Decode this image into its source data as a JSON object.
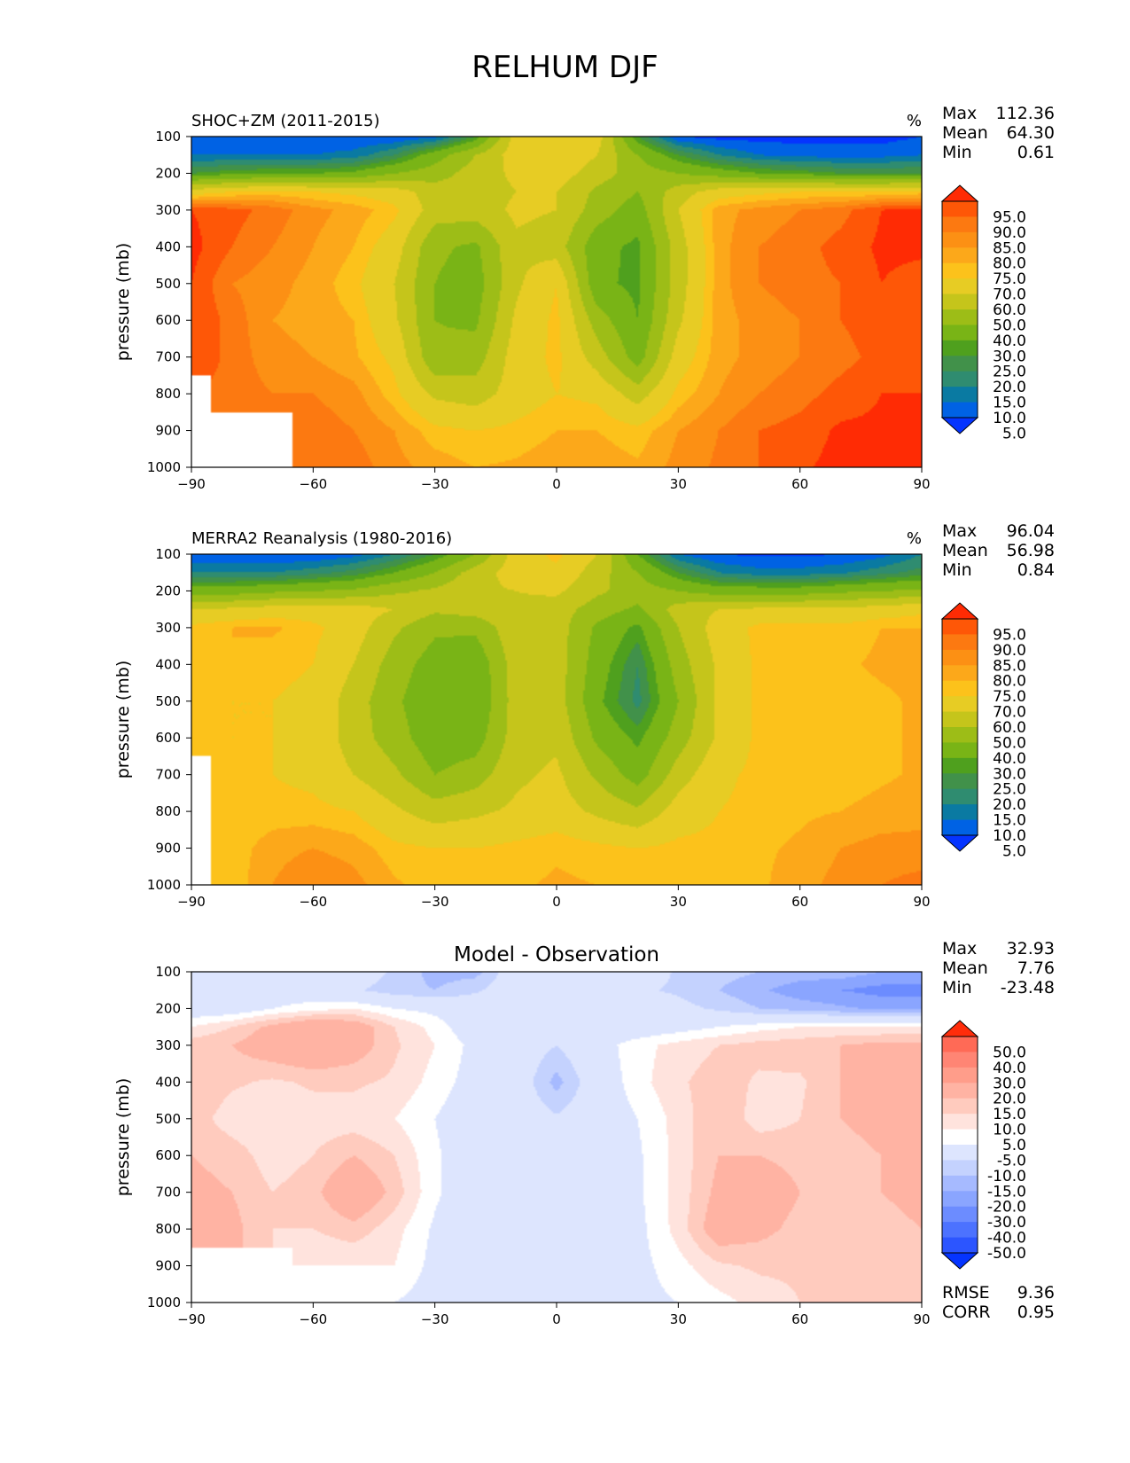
{
  "title": "RELHUM DJF",
  "colors": {
    "abs_levels": [
      "#0534ff",
      "#0062e4",
      "#0a7aa2",
      "#2f8c70",
      "#41914a",
      "#4fa01e",
      "#79b416",
      "#9dbd17",
      "#c5c51b",
      "#e7cc24",
      "#fcc21b",
      "#fca81a",
      "#fc9014",
      "#fc7911",
      "#fe5707",
      "#ff2b04"
    ],
    "diff_levels": [
      "#0534ff",
      "#2c55ff",
      "#4c72ff",
      "#6c8cff",
      "#8aa5ff",
      "#a6baff",
      "#c4d2fe",
      "#dde5fe",
      "#ffffff",
      "#ffe3dd",
      "#ffcbbe",
      "#ffb3a3",
      "#ff9d8a",
      "#ff8574",
      "#ff6a56",
      "#ff2d0b"
    ]
  },
  "chart_data": [
    {
      "type": "heatmap",
      "name": "model",
      "title": "SHOC+ZM (2011-2015)",
      "units": "%",
      "ylabel": "pressure (mb)",
      "xlabel": "",
      "x_ticks": [
        "−90",
        "−60",
        "−30",
        "0",
        "30",
        "60",
        "90"
      ],
      "y_ticks": [
        "100",
        "200",
        "300",
        "400",
        "500",
        "600",
        "700",
        "800",
        "900",
        "1000"
      ],
      "xlim": [
        -90,
        90
      ],
      "ylim": [
        1000,
        100
      ],
      "stats": {
        "max_label": "Max",
        "max": "112.36",
        "mean_label": "Mean",
        "mean": "64.30",
        "min_label": "Min",
        "min": "0.61"
      },
      "colorbar_labels": [
        "95.0",
        "90.0",
        "85.0",
        "80.0",
        "75.0",
        "70.0",
        "60.0",
        "50.0",
        "40.0",
        "30.0",
        "25.0",
        "20.0",
        "15.0",
        "10.0",
        "5.0"
      ],
      "lat": [
        -90,
        -80,
        -70,
        -60,
        -50,
        -40,
        -30,
        -20,
        -10,
        0,
        10,
        20,
        30,
        40,
        50,
        60,
        70,
        80,
        90
      ],
      "pressure": [
        100,
        150,
        200,
        250,
        300,
        400,
        500,
        600,
        700,
        800,
        900,
        1000
      ],
      "values": [
        [
          5,
          5,
          5,
          5,
          5,
          5,
          8,
          25,
          65,
          70,
          65,
          25,
          5,
          3,
          3,
          3,
          3,
          3,
          5
        ],
        [
          10,
          10,
          10,
          10,
          12,
          20,
          35,
          50,
          65,
          70,
          60,
          40,
          25,
          15,
          10,
          8,
          8,
          8,
          10
        ],
        [
          25,
          28,
          30,
          30,
          32,
          40,
          45,
          55,
          62,
          65,
          55,
          45,
          40,
          35,
          30,
          28,
          25,
          25,
          25
        ],
        [
          65,
          70,
          72,
          70,
          68,
          65,
          55,
          55,
          60,
          60,
          48,
          40,
          55,
          65,
          68,
          70,
          70,
          70,
          72
        ],
        [
          95,
          92,
          88,
          82,
          78,
          72,
          55,
          55,
          62,
          60,
          45,
          35,
          60,
          78,
          82,
          85,
          88,
          95,
          97
        ],
        [
          97,
          90,
          85,
          80,
          75,
          65,
          42,
          38,
          58,
          55,
          33,
          28,
          55,
          78,
          85,
          88,
          92,
          96,
          96
        ],
        [
          95,
          85,
          82,
          78,
          72,
          60,
          40,
          35,
          58,
          70,
          32,
          28,
          55,
          78,
          85,
          88,
          90,
          95,
          93
        ],
        [
          95,
          88,
          80,
          78,
          75,
          62,
          40,
          38,
          62,
          72,
          45,
          30,
          58,
          78,
          82,
          85,
          90,
          93,
          92
        ],
        [
          95,
          88,
          82,
          80,
          76,
          68,
          42,
          45,
          65,
          72,
          55,
          35,
          65,
          78,
          82,
          85,
          88,
          92,
          92
        ],
        [
          null,
          88,
          85,
          85,
          82,
          72,
          58,
          55,
          65,
          70,
          68,
          55,
          72,
          80,
          85,
          88,
          92,
          95,
          95
        ],
        [
          null,
          null,
          null,
          88,
          85,
          80,
          72,
          70,
          72,
          75,
          75,
          72,
          80,
          85,
          90,
          92,
          96,
          96,
          97
        ],
        [
          null,
          null,
          null,
          88,
          88,
          82,
          78,
          75,
          76,
          78,
          78,
          76,
          82,
          86,
          90,
          94,
          97,
          97,
          98
        ]
      ]
    },
    {
      "type": "heatmap",
      "name": "obs",
      "title": "MERRA2 Reanalysis (1980-2016)",
      "units": "%",
      "ylabel": "pressure (mb)",
      "xlabel": "",
      "x_ticks": [
        "−90",
        "−60",
        "−30",
        "0",
        "30",
        "60",
        "90"
      ],
      "y_ticks": [
        "100",
        "200",
        "300",
        "400",
        "500",
        "600",
        "700",
        "800",
        "900",
        "1000"
      ],
      "xlim": [
        -90,
        90
      ],
      "ylim": [
        1000,
        100
      ],
      "stats": {
        "max_label": "Max",
        "max": "96.04",
        "mean_label": "Mean",
        "mean": "56.98",
        "min_label": "Min",
        "min": "0.84"
      },
      "colorbar_labels": [
        "95.0",
        "90.0",
        "85.0",
        "80.0",
        "75.0",
        "70.0",
        "60.0",
        "50.0",
        "40.0",
        "30.0",
        "25.0",
        "20.0",
        "15.0",
        "10.0",
        "5.0"
      ],
      "lat": [
        -90,
        -80,
        -70,
        -60,
        -50,
        -40,
        -30,
        -20,
        -10,
        0,
        10,
        20,
        30,
        40,
        50,
        60,
        70,
        80,
        90
      ],
      "pressure": [
        100,
        150,
        200,
        250,
        300,
        400,
        500,
        600,
        700,
        800,
        900,
        1000
      ],
      "values": [
        [
          5,
          5,
          5,
          5,
          8,
          15,
          25,
          40,
          65,
          72,
          60,
          30,
          10,
          5,
          4,
          4,
          5,
          8,
          15
        ],
        [
          15,
          15,
          15,
          18,
          22,
          30,
          40,
          55,
          65,
          68,
          55,
          40,
          25,
          15,
          12,
          12,
          14,
          18,
          22
        ],
        [
          35,
          35,
          38,
          40,
          42,
          48,
          52,
          58,
          60,
          62,
          52,
          45,
          40,
          35,
          35,
          35,
          38,
          40,
          42
        ],
        [
          60,
          62,
          65,
          65,
          65,
          60,
          52,
          55,
          58,
          55,
          45,
          38,
          55,
          60,
          62,
          62,
          62,
          65,
          68
        ],
        [
          72,
          75,
          76,
          72,
          65,
          52,
          42,
          42,
          58,
          55,
          38,
          28,
          50,
          65,
          72,
          72,
          72,
          75,
          75
        ],
        [
          74,
          75,
          72,
          70,
          60,
          45,
          35,
          32,
          55,
          55,
          35,
          20,
          45,
          62,
          72,
          74,
          74,
          76,
          76
        ],
        [
          72,
          70,
          70,
          68,
          55,
          42,
          32,
          30,
          55,
          55,
          32,
          18,
          40,
          62,
          72,
          72,
          72,
          74,
          76
        ],
        [
          72,
          70,
          70,
          68,
          55,
          45,
          33,
          35,
          55,
          58,
          38,
          28,
          45,
          62,
          72,
          72,
          72,
          74,
          76
        ],
        [
          null,
          72,
          70,
          68,
          60,
          52,
          40,
          45,
          58,
          62,
          48,
          35,
          55,
          68,
          72,
          72,
          72,
          74,
          76
        ],
        [
          null,
          70,
          72,
          72,
          70,
          62,
          55,
          58,
          62,
          65,
          58,
          52,
          65,
          70,
          72,
          74,
          75,
          77,
          78
        ],
        [
          null,
          72,
          78,
          80,
          78,
          72,
          70,
          70,
          72,
          74,
          72,
          70,
          72,
          72,
          74,
          76,
          80,
          82,
          82
        ],
        [
          null,
          72,
          80,
          85,
          82,
          76,
          72,
          72,
          74,
          76,
          75,
          72,
          72,
          72,
          74,
          78,
          82,
          85,
          87
        ]
      ]
    },
    {
      "type": "heatmap",
      "name": "diff",
      "title": "Model - Observation",
      "units": "",
      "ylabel": "pressure (mb)",
      "xlabel": "",
      "x_ticks": [
        "−90",
        "−60",
        "−30",
        "0",
        "30",
        "60",
        "90"
      ],
      "y_ticks": [
        "100",
        "200",
        "300",
        "400",
        "500",
        "600",
        "700",
        "800",
        "900",
        "1000"
      ],
      "xlim": [
        -90,
        90
      ],
      "ylim": [
        1000,
        100
      ],
      "stats": {
        "max_label": "Max",
        "max": "32.93",
        "mean_label": "Mean",
        "mean": "7.76",
        "min_label": "Min",
        "min": "-23.48"
      },
      "colorbar_labels": [
        "50.0",
        "40.0",
        "30.0",
        "20.0",
        "15.0",
        "10.0",
        "5.0",
        "-5.0",
        "-10.0",
        "-15.0",
        "-20.0",
        "-30.0",
        "-40.0",
        "-50.0"
      ],
      "metrics": {
        "rmse_label": "RMSE",
        "rmse": "9.36",
        "corr_label": "CORR",
        "corr": "0.95"
      },
      "lat": [
        -90,
        -80,
        -70,
        -60,
        -50,
        -40,
        -30,
        -20,
        -10,
        0,
        10,
        20,
        30,
        40,
        50,
        60,
        70,
        80,
        90
      ],
      "pressure": [
        100,
        150,
        200,
        250,
        300,
        400,
        500,
        600,
        700,
        800,
        900,
        1000
      ],
      "values": [
        [
          0,
          0,
          0,
          0,
          0,
          -6,
          -12,
          -12,
          0,
          3,
          3,
          0,
          -6,
          -8,
          -10,
          -12,
          -12,
          -15,
          -15
        ],
        [
          0,
          0,
          0,
          0,
          -4,
          -8,
          -10,
          -6,
          0,
          2,
          0,
          -4,
          -6,
          -10,
          -14,
          -18,
          -20,
          -22,
          -22
        ],
        [
          0,
          0,
          5,
          8,
          10,
          5,
          3,
          0,
          0,
          0,
          0,
          0,
          -3,
          -6,
          -10,
          -12,
          -14,
          -16,
          -16
        ],
        [
          10,
          15,
          22,
          28,
          25,
          15,
          8,
          0,
          0,
          2,
          0,
          0,
          2,
          5,
          8,
          10,
          10,
          10,
          10
        ],
        [
          18,
          20,
          25,
          28,
          24,
          16,
          10,
          3,
          0,
          -5,
          2,
          8,
          12,
          15,
          17,
          18,
          20,
          22,
          22
        ],
        [
          20,
          16,
          14,
          16,
          16,
          14,
          8,
          2,
          0,
          -12,
          0,
          8,
          14,
          18,
          14,
          14,
          20,
          22,
          20
        ],
        [
          18,
          12,
          10,
          12,
          12,
          10,
          5,
          0,
          0,
          -4,
          0,
          5,
          12,
          20,
          12,
          15,
          20,
          22,
          20
        ],
        [
          20,
          18,
          12,
          15,
          20,
          15,
          6,
          0,
          0,
          0,
          0,
          4,
          12,
          20,
          20,
          18,
          18,
          20,
          22
        ],
        [
          22,
          20,
          15,
          18,
          28,
          18,
          6,
          0,
          0,
          0,
          0,
          4,
          12,
          22,
          25,
          20,
          18,
          20,
          22
        ],
        [
          25,
          22,
          15,
          15,
          18,
          12,
          4,
          0,
          0,
          3,
          0,
          3,
          12,
          25,
          22,
          18,
          16,
          18,
          20
        ],
        [
          null,
          null,
          null,
          10,
          10,
          10,
          3,
          2,
          2,
          5,
          3,
          3,
          8,
          14,
          16,
          16,
          16,
          18,
          18
        ],
        [
          null,
          null,
          null,
          5,
          5,
          5,
          2,
          2,
          2,
          5,
          3,
          3,
          5,
          8,
          12,
          15,
          16,
          18,
          18
        ]
      ]
    }
  ]
}
